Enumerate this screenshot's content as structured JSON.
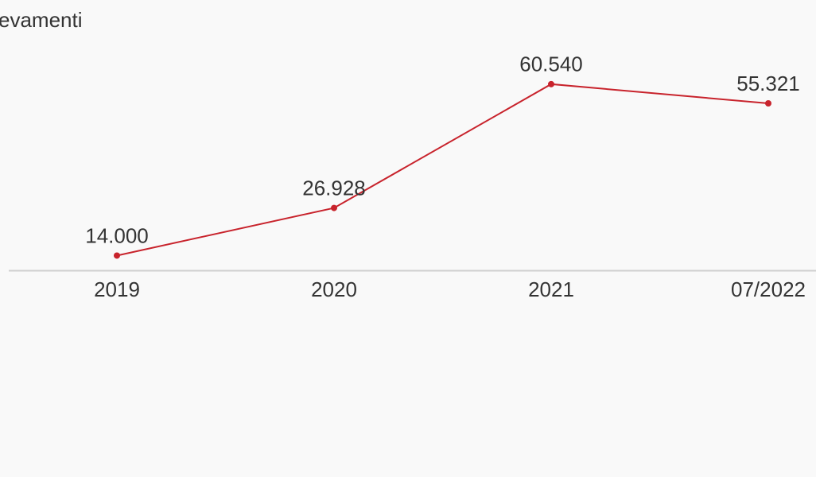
{
  "chart_data": {
    "type": "line",
    "title": "evamenti",
    "categories": [
      "2019",
      "2020",
      "2021",
      "07/2022"
    ],
    "values": [
      14000,
      26928,
      60540,
      55321
    ],
    "value_labels": [
      "14.000",
      "26.928",
      "60.540",
      "55.321"
    ],
    "color": "#c8232c",
    "ylim": [
      10000,
      70000
    ]
  }
}
